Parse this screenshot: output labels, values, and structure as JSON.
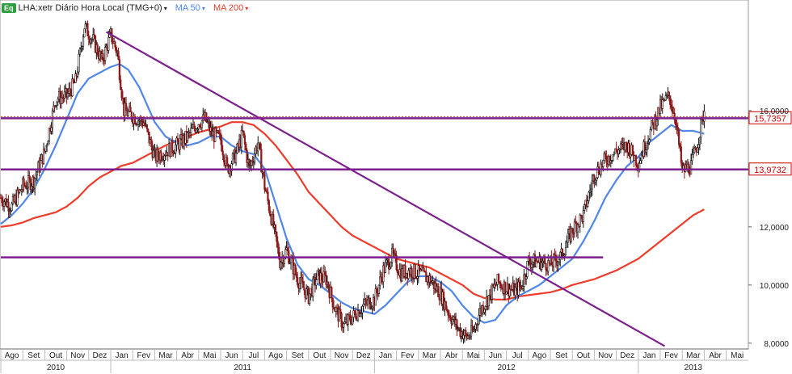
{
  "header": {
    "badge": "Eq",
    "symbol_text": "LHA:xetr Diário Hora Local (TMG+0)",
    "ma50_label": "MA 50",
    "ma200_label": "MA 200",
    "caret": "▾"
  },
  "colors": {
    "price_up": "#111111",
    "price_down": "#8b1a1a",
    "ma50": "#4f86e8",
    "ma200": "#ee3b2a",
    "trendline": "#7b1f8c",
    "level_label_bg": "#ffffff",
    "level_label_text": "#cc0000",
    "grid": "#dddddd",
    "axis_text": "#222222"
  },
  "chart_data": {
    "type": "candlestick",
    "title": "",
    "xlabel": "",
    "ylabel": "",
    "ylim": [
      7.8,
      19.8
    ],
    "y_ticks": [
      {
        "value": 8.0,
        "label": "8,0000"
      },
      {
        "value": 10.0,
        "label": "10,0000"
      },
      {
        "value": 12.0,
        "label": "12,0000"
      },
      {
        "value": 16.0,
        "label": "16,0000"
      }
    ],
    "x_months": [
      "Ago",
      "Set",
      "Out",
      "Nov",
      "Dez",
      "Jan",
      "Fev",
      "Mar",
      "Abr",
      "Mai",
      "Jun",
      "Jul",
      "Ago",
      "Set",
      "Out",
      "Nov",
      "Dez",
      "Jan",
      "Fev",
      "Mar",
      "Abr",
      "Mai",
      "Jun",
      "Jul",
      "Ago",
      "Set",
      "Out",
      "Nov",
      "Dez",
      "Jan",
      "Fev",
      "Mar",
      "Abr",
      "Mai"
    ],
    "x_years": [
      {
        "label": "2010",
        "start_month_index": 0,
        "end_month_index": 4
      },
      {
        "label": "2011",
        "start_month_index": 5,
        "end_month_index": 16
      },
      {
        "label": "2012",
        "start_month_index": 17,
        "end_month_index": 28
      },
      {
        "label": "2013",
        "start_month_index": 29,
        "end_month_index": 33
      }
    ],
    "price_anchors": [
      [
        0,
        13.0
      ],
      [
        0.5,
        12.7
      ],
      [
        1,
        13.4
      ],
      [
        1.5,
        13.6
      ],
      [
        2,
        14.6
      ],
      [
        2.5,
        16.4
      ],
      [
        3,
        16.5
      ],
      [
        3.4,
        17.0
      ],
      [
        3.8,
        18.9
      ],
      [
        4.2,
        18.4
      ],
      [
        4.6,
        17.7
      ],
      [
        5,
        18.6
      ],
      [
        5.3,
        18.0
      ],
      [
        5.6,
        16.0
      ],
      [
        6,
        15.8
      ],
      [
        6.5,
        15.6
      ],
      [
        7,
        14.4
      ],
      [
        7.5,
        14.6
      ],
      [
        8,
        14.8
      ],
      [
        8.5,
        15.1
      ],
      [
        9,
        15.6
      ],
      [
        9.3,
        15.7
      ],
      [
        9.6,
        15.2
      ],
      [
        10,
        15.0
      ],
      [
        10.3,
        14.0
      ],
      [
        10.7,
        14.5
      ],
      [
        11,
        15.2
      ],
      [
        11.3,
        14.0
      ],
      [
        11.7,
        14.9
      ],
      [
        12,
        13.4
      ],
      [
        12.4,
        12.0
      ],
      [
        12.7,
        10.8
      ],
      [
        13,
        11.2
      ],
      [
        13.5,
        10.2
      ],
      [
        14,
        9.6
      ],
      [
        14.4,
        10.3
      ],
      [
        14.8,
        10.2
      ],
      [
        15.2,
        9.2
      ],
      [
        15.6,
        8.6
      ],
      [
        16,
        8.9
      ],
      [
        16.5,
        9.3
      ],
      [
        17,
        9.5
      ],
      [
        17.4,
        10.5
      ],
      [
        17.8,
        11.0
      ],
      [
        18.2,
        10.4
      ],
      [
        18.6,
        10.5
      ],
      [
        19,
        10.4
      ],
      [
        19.5,
        10.2
      ],
      [
        20,
        9.7
      ],
      [
        20.4,
        9.0
      ],
      [
        20.8,
        8.5
      ],
      [
        21.2,
        8.2
      ],
      [
        21.5,
        8.4
      ],
      [
        21.8,
        9.1
      ],
      [
        22.2,
        9.6
      ],
      [
        22.6,
        10.1
      ],
      [
        23,
        9.9
      ],
      [
        23.4,
        9.8
      ],
      [
        23.7,
        10.0
      ],
      [
        24,
        10.8
      ],
      [
        24.5,
        10.8
      ],
      [
        25,
        10.7
      ],
      [
        25.5,
        11.0
      ],
      [
        26,
        11.9
      ],
      [
        26.5,
        12.4
      ],
      [
        27,
        13.8
      ],
      [
        27.5,
        14.3
      ],
      [
        28,
        14.6
      ],
      [
        28.5,
        14.8
      ],
      [
        29,
        14.2
      ],
      [
        29.5,
        15.2
      ],
      [
        30,
        16.1
      ],
      [
        30.4,
        16.5
      ],
      [
        30.7,
        15.7
      ],
      [
        31,
        13.9
      ],
      [
        31.4,
        14.1
      ],
      [
        31.7,
        14.9
      ],
      [
        32,
        16.0
      ]
    ],
    "ma50_anchors": [
      [
        0,
        12.1
      ],
      [
        0.5,
        12.4
      ],
      [
        1,
        12.8
      ],
      [
        1.5,
        13.3
      ],
      [
        2,
        14.0
      ],
      [
        2.5,
        14.8
      ],
      [
        3,
        15.7
      ],
      [
        3.5,
        16.6
      ],
      [
        4,
        17.1
      ],
      [
        4.5,
        17.3
      ],
      [
        5,
        17.5
      ],
      [
        5.4,
        17.6
      ],
      [
        5.8,
        17.4
      ],
      [
        6.3,
        16.8
      ],
      [
        7,
        15.6
      ],
      [
        7.5,
        15.1
      ],
      [
        8,
        14.9
      ],
      [
        8.5,
        14.8
      ],
      [
        9,
        14.9
      ],
      [
        9.5,
        15.1
      ],
      [
        10,
        15.1
      ],
      [
        10.5,
        14.8
      ],
      [
        11,
        14.6
      ],
      [
        11.5,
        14.5
      ],
      [
        12,
        14.0
      ],
      [
        12.5,
        12.8
      ],
      [
        13,
        11.6
      ],
      [
        13.5,
        10.7
      ],
      [
        14,
        10.2
      ],
      [
        14.5,
        10.0
      ],
      [
        15,
        9.7
      ],
      [
        15.5,
        9.4
      ],
      [
        16,
        9.2
      ],
      [
        16.5,
        9.1
      ],
      [
        17,
        9.0
      ],
      [
        17.5,
        9.3
      ],
      [
        18,
        9.7
      ],
      [
        18.5,
        10.1
      ],
      [
        19,
        10.3
      ],
      [
        19.5,
        10.3
      ],
      [
        20,
        10.1
      ],
      [
        20.5,
        9.8
      ],
      [
        21,
        9.3
      ],
      [
        21.5,
        8.9
      ],
      [
        22,
        8.7
      ],
      [
        22.5,
        8.8
      ],
      [
        23,
        9.3
      ],
      [
        23.5,
        9.6
      ],
      [
        24,
        9.8
      ],
      [
        24.5,
        10.0
      ],
      [
        25,
        10.3
      ],
      [
        25.5,
        10.6
      ],
      [
        26,
        10.9
      ],
      [
        26.5,
        11.5
      ],
      [
        27,
        12.2
      ],
      [
        27.5,
        13.0
      ],
      [
        28,
        13.6
      ],
      [
        28.5,
        14.1
      ],
      [
        29,
        14.4
      ],
      [
        29.5,
        14.9
      ],
      [
        30,
        15.2
      ],
      [
        30.5,
        15.5
      ],
      [
        31,
        15.3
      ],
      [
        31.5,
        15.3
      ],
      [
        32,
        15.2
      ]
    ],
    "ma200_anchors": [
      [
        0,
        12.0
      ],
      [
        0.5,
        12.05
      ],
      [
        1,
        12.15
      ],
      [
        1.5,
        12.3
      ],
      [
        2,
        12.4
      ],
      [
        2.5,
        12.5
      ],
      [
        3,
        12.7
      ],
      [
        3.5,
        13.0
      ],
      [
        4,
        13.4
      ],
      [
        4.5,
        13.7
      ],
      [
        5,
        13.9
      ],
      [
        5.5,
        14.1
      ],
      [
        6,
        14.2
      ],
      [
        6.5,
        14.4
      ],
      [
        7,
        14.6
      ],
      [
        7.5,
        14.8
      ],
      [
        8,
        14.95
      ],
      [
        8.5,
        15.1
      ],
      [
        9,
        15.25
      ],
      [
        9.5,
        15.35
      ],
      [
        10,
        15.45
      ],
      [
        10.5,
        15.6
      ],
      [
        11,
        15.6
      ],
      [
        11.5,
        15.5
      ],
      [
        12,
        15.2
      ],
      [
        12.5,
        14.8
      ],
      [
        13,
        14.3
      ],
      [
        13.5,
        13.8
      ],
      [
        14,
        13.2
      ],
      [
        14.5,
        12.8
      ],
      [
        15,
        12.4
      ],
      [
        15.5,
        12.0
      ],
      [
        16,
        11.7
      ],
      [
        16.5,
        11.5
      ],
      [
        17,
        11.3
      ],
      [
        17.5,
        11.1
      ],
      [
        18,
        10.9
      ],
      [
        18.5,
        10.8
      ],
      [
        19,
        10.7
      ],
      [
        19.5,
        10.6
      ],
      [
        20,
        10.4
      ],
      [
        20.5,
        10.2
      ],
      [
        21,
        10.0
      ],
      [
        21.5,
        9.7
      ],
      [
        22,
        9.55
      ],
      [
        22.5,
        9.5
      ],
      [
        23,
        9.5
      ],
      [
        23.5,
        9.6
      ],
      [
        24,
        9.65
      ],
      [
        24.5,
        9.7
      ],
      [
        25,
        9.75
      ],
      [
        25.5,
        9.85
      ],
      [
        26,
        10.0
      ],
      [
        26.5,
        10.1
      ],
      [
        27,
        10.2
      ],
      [
        27.5,
        10.35
      ],
      [
        28,
        10.5
      ],
      [
        28.5,
        10.7
      ],
      [
        29,
        10.9
      ],
      [
        29.5,
        11.2
      ],
      [
        30,
        11.5
      ],
      [
        30.5,
        11.8
      ],
      [
        31,
        12.1
      ],
      [
        31.5,
        12.4
      ],
      [
        32,
        12.6
      ]
    ],
    "horizontal_levels": [
      {
        "value": 15.7357,
        "label": "15,7357",
        "x_start": 0,
        "x_end": 34,
        "dashed_overlay": true
      },
      {
        "value": 13.9732,
        "label": "13,9732",
        "x_start": 0,
        "x_end": 34,
        "dashed_overlay": false
      },
      {
        "value": 10.95,
        "label": "",
        "x_start": 0,
        "x_end": 27.4,
        "dashed_overlay": false
      }
    ],
    "trendline": {
      "x1": 4.8,
      "y1": 18.7,
      "x2": 30.2,
      "y2": 7.9
    },
    "grid": false,
    "legend": "top-left"
  }
}
